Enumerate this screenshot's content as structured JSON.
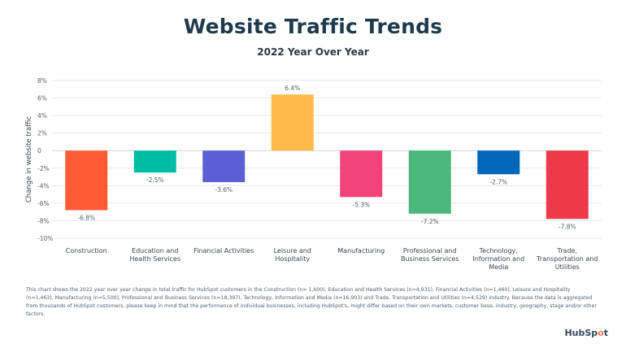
{
  "title": "Website Traffic Trends",
  "subtitle": "2022 Year Over Year",
  "footnote": "This chart shows the 2022 year over year change in total traffic for HubSpot customers in the Construction (n= 1,600), Education and Health Services (n=4,931), Financial Activities (n=1,460), Leisure and Hospitality (n=1,463), Manufacturing (n=5,500), Professional and Business Services (n=18,397), Technology, Information and Media (n=16,903) and Trade, Transportation and Utilities (n=4,529) industry. Because the data is aggregated from thousands of HubSpot customers, please keep in mind that the performance of individual businesses, including HubSpot's, might differ based on their own markets, customer base, industry, geography, stage and/or other factors.",
  "logo": {
    "text_a": "HubSp",
    "text_dot": "o",
    "text_b": "t"
  },
  "chart_data": {
    "type": "bar",
    "ylabel": "Change in website traffic",
    "ylim": [
      -10,
      8
    ],
    "yticks": [
      8,
      6,
      4,
      2,
      0,
      -2,
      -4,
      -6,
      -8,
      -10
    ],
    "ytick_labels": [
      "8%",
      "6%",
      "4%",
      "2%",
      "0",
      "-2%",
      "-4%",
      "-6%",
      "-8%",
      "-10%"
    ],
    "grid": true,
    "categories": [
      [
        "Construction"
      ],
      [
        "Education and",
        "Health Services"
      ],
      [
        "Financial Activities"
      ],
      [
        "Leisure and",
        "Hospitality"
      ],
      [
        "Manufacturing"
      ],
      [
        "Professional and",
        "Business Services"
      ],
      [
        "Technology,",
        "Information and",
        "Media"
      ],
      [
        "Trade,",
        "Transportation and",
        "Utilities"
      ]
    ],
    "values": [
      -6.8,
      -2.5,
      -3.6,
      6.4,
      -5.3,
      -7.2,
      -2.7,
      -7.8
    ],
    "value_labels": [
      "-6.8%",
      "-2.5%",
      "-3.6%",
      "6.4%",
      "-5.3%",
      "-7.2%",
      "-2.7%",
      "-7.8%"
    ],
    "colors": [
      "#ff5c35",
      "#00bda5",
      "#5b5fd6",
      "#ffba4a",
      "#f2437a",
      "#4cb77a",
      "#0067b8",
      "#ee3a48"
    ]
  }
}
